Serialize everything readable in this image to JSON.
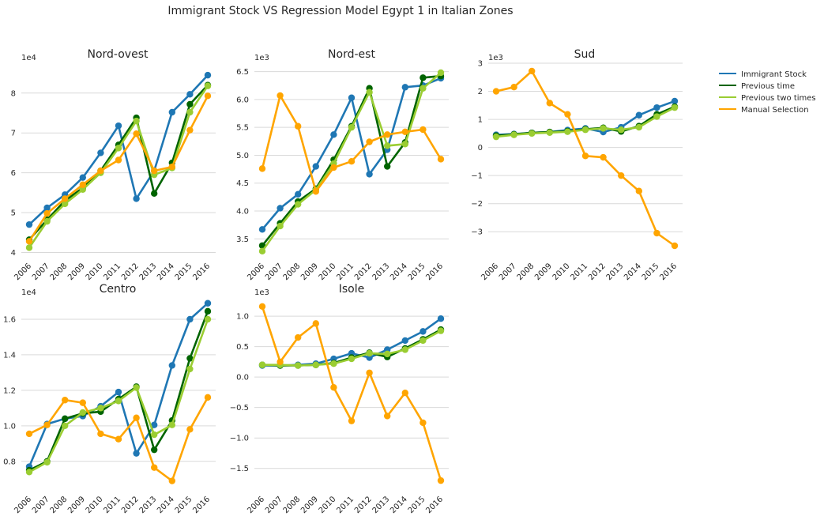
{
  "suptitle": "Immigrant Stock VS Regression Model Egypt 1 in Italian Zones",
  "colors": {
    "immigrant_stock": "#1f77b4",
    "previous_time": "#006400",
    "previous_two_times": "#9acd32",
    "manual_selection": "#ffa500",
    "grid": "#d9d9d9",
    "text": "#262626"
  },
  "legend": {
    "placement": "right",
    "entries": [
      "Immigrant Stock",
      "Previous time",
      "Previous two times",
      "Manual Selection"
    ]
  },
  "chart_data": [
    {
      "type": "line",
      "title": "Nord-ovest",
      "offset_label": "1e4",
      "categories": [
        "2006",
        "2007",
        "2008",
        "2009",
        "2010",
        "2011",
        "2012",
        "2013",
        "2014",
        "2015",
        "2016"
      ],
      "ylim": [
        3.85,
        8.75
      ],
      "yticks": [
        4,
        5,
        6,
        7,
        8
      ],
      "ytick_labels": [
        "4",
        "5",
        "6",
        "7",
        "8"
      ],
      "series": [
        {
          "name": "Immigrant Stock",
          "values": [
            4.7,
            5.12,
            5.45,
            5.88,
            6.5,
            7.18,
            5.35,
            6.05,
            7.52,
            7.97,
            8.45
          ]
        },
        {
          "name": "Previous time",
          "values": [
            4.32,
            4.82,
            5.3,
            5.62,
            6.05,
            6.7,
            7.38,
            5.48,
            6.25,
            7.72,
            8.2
          ]
        },
        {
          "name": "Previous two times",
          "values": [
            4.12,
            4.78,
            5.22,
            5.58,
            6.0,
            6.62,
            7.3,
            5.95,
            6.12,
            7.52,
            8.18
          ]
        },
        {
          "name": "Manual Selection",
          "values": [
            4.28,
            4.98,
            5.35,
            5.7,
            6.05,
            6.32,
            6.98,
            6.05,
            6.15,
            7.07,
            7.93
          ]
        }
      ]
    },
    {
      "type": "line",
      "title": "Nord-est",
      "offset_label": "1e3",
      "categories": [
        "2006",
        "2007",
        "2008",
        "2009",
        "2010",
        "2011",
        "2012",
        "2013",
        "2014",
        "2015",
        "2016"
      ],
      "ylim": [
        3.15,
        6.65
      ],
      "yticks": [
        3.5,
        4.0,
        4.5,
        5.0,
        5.5,
        6.0,
        6.5
      ],
      "ytick_labels": [
        "3.5",
        "4.0",
        "4.5",
        "5.0",
        "5.5",
        "6.0",
        "6.5"
      ],
      "series": [
        {
          "name": "Immigrant Stock",
          "values": [
            3.67,
            4.05,
            4.3,
            4.8,
            5.37,
            6.03,
            4.66,
            5.1,
            6.22,
            6.25,
            6.38
          ]
        },
        {
          "name": "Previous time",
          "values": [
            3.38,
            3.78,
            4.17,
            4.4,
            4.92,
            5.52,
            6.2,
            4.8,
            5.23,
            6.39,
            6.42
          ]
        },
        {
          "name": "Previous two times",
          "values": [
            3.28,
            3.73,
            4.12,
            4.38,
            4.85,
            5.5,
            6.13,
            5.17,
            5.2,
            6.2,
            6.48
          ]
        },
        {
          "name": "Manual Selection",
          "values": [
            4.76,
            6.07,
            5.52,
            4.35,
            4.78,
            4.89,
            5.24,
            5.37,
            5.42,
            5.46,
            4.93
          ]
        }
      ]
    },
    {
      "type": "line",
      "title": "Sud",
      "offset_label": "1e3",
      "categories": [
        "2006",
        "2007",
        "2008",
        "2009",
        "2010",
        "2011",
        "2012",
        "2013",
        "2014",
        "2015",
        "2016"
      ],
      "ylim": [
        -3.95,
        3.0
      ],
      "yticks": [
        -3,
        -2,
        -1,
        0,
        1,
        2,
        3
      ],
      "ytick_labels": [
        "−3",
        "−2",
        "−1",
        "0",
        "1",
        "2",
        "3"
      ],
      "series": [
        {
          "name": "Immigrant Stock",
          "values": [
            0.45,
            0.48,
            0.52,
            0.55,
            0.62,
            0.68,
            0.55,
            0.72,
            1.15,
            1.42,
            1.65
          ]
        },
        {
          "name": "Previous time",
          "values": [
            0.42,
            0.47,
            0.52,
            0.55,
            0.58,
            0.65,
            0.7,
            0.57,
            0.76,
            1.18,
            1.45
          ]
        },
        {
          "name": "Previous two times",
          "values": [
            0.38,
            0.45,
            0.5,
            0.53,
            0.56,
            0.63,
            0.68,
            0.63,
            0.72,
            1.1,
            1.42
          ]
        },
        {
          "name": "Manual Selection",
          "values": [
            2.0,
            2.15,
            2.72,
            1.58,
            1.18,
            -0.3,
            -0.35,
            -1.0,
            -1.55,
            -3.05,
            -3.5
          ]
        }
      ]
    },
    {
      "type": "line",
      "title": "Centro",
      "offset_label": "1e4",
      "categories": [
        "2006",
        "2007",
        "2008",
        "2009",
        "2010",
        "2011",
        "2012",
        "2013",
        "2014",
        "2015",
        "2016"
      ],
      "ylim": [
        0.63,
        1.72
      ],
      "yticks": [
        0.8,
        1.0,
        1.2,
        1.4,
        1.6
      ],
      "ytick_labels": [
        "0.8",
        "1.0",
        "1.2",
        "1.4",
        "1.6"
      ],
      "series": [
        {
          "name": "Immigrant Stock",
          "values": [
            0.77,
            1.01,
            1.04,
            1.055,
            1.11,
            1.19,
            0.845,
            1.005,
            1.34,
            1.6,
            1.69
          ]
        },
        {
          "name": "Previous time",
          "values": [
            0.75,
            0.8,
            1.04,
            1.07,
            1.08,
            1.15,
            1.22,
            0.865,
            1.03,
            1.38,
            1.645
          ]
        },
        {
          "name": "Previous two times",
          "values": [
            0.74,
            0.795,
            1.0,
            1.075,
            1.1,
            1.14,
            1.215,
            0.95,
            1.005,
            1.32,
            1.6
          ]
        },
        {
          "name": "Manual Selection",
          "values": [
            0.955,
            1.005,
            1.145,
            1.13,
            0.955,
            0.925,
            1.045,
            0.765,
            0.69,
            0.98,
            1.16
          ]
        }
      ]
    },
    {
      "type": "line",
      "title": "Isole",
      "offset_label": "1e3",
      "categories": [
        "2006",
        "2007",
        "2008",
        "2009",
        "2010",
        "2011",
        "2012",
        "2013",
        "2014",
        "2015",
        "2016"
      ],
      "ylim": [
        -1.88,
        1.3
      ],
      "yticks": [
        -1.5,
        -1.0,
        -0.5,
        0.0,
        0.5,
        1.0
      ],
      "ytick_labels": [
        "−1.5",
        "−1.0",
        "−0.5",
        "0.0",
        "0.5",
        "1.0"
      ],
      "series": [
        {
          "name": "Immigrant Stock",
          "values": [
            0.19,
            0.19,
            0.2,
            0.22,
            0.3,
            0.39,
            0.32,
            0.45,
            0.6,
            0.75,
            0.96
          ]
        },
        {
          "name": "Previous time",
          "values": [
            0.2,
            0.19,
            0.19,
            0.2,
            0.23,
            0.32,
            0.4,
            0.33,
            0.47,
            0.62,
            0.78
          ]
        },
        {
          "name": "Previous two times",
          "values": [
            0.2,
            0.2,
            0.19,
            0.2,
            0.22,
            0.3,
            0.39,
            0.38,
            0.45,
            0.6,
            0.76
          ]
        },
        {
          "name": "Manual Selection",
          "values": [
            1.16,
            0.25,
            0.65,
            0.88,
            -0.17,
            -0.72,
            0.07,
            -0.64,
            -0.26,
            -0.75,
            -1.7
          ]
        }
      ]
    }
  ]
}
